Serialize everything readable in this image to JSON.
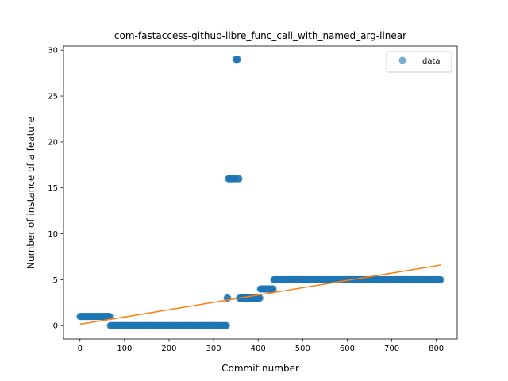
{
  "chart_data": {
    "type": "scatter",
    "title": "com-fastaccess-github-libre_func_call_with_named_arg-linear",
    "xlabel": "Commit number",
    "ylabel": "Number of instance of a feature",
    "xlim": [
      -37,
      847
    ],
    "ylim": [
      -1.45,
      30.45
    ],
    "xticks": [
      0,
      100,
      200,
      300,
      400,
      500,
      600,
      700,
      800
    ],
    "yticks": [
      0,
      5,
      10,
      15,
      20,
      25,
      30
    ],
    "grid": false,
    "legend": {
      "position": "top-right",
      "entries": [
        "data"
      ]
    },
    "colors": {
      "data": "#1f77b4",
      "fit": "#ff7f0e"
    },
    "series": [
      {
        "name": "data",
        "kind": "scatter",
        "segments": [
          {
            "x_start": 0,
            "x_end": 68,
            "y": 1
          },
          {
            "x_start": 68,
            "x_end": 330,
            "y": 0
          },
          {
            "x_start": 330,
            "x_end": 333,
            "y": 3
          },
          {
            "x_start": 333,
            "x_end": 350,
            "y": 16
          },
          {
            "x_start": 350,
            "x_end": 355,
            "y": 29
          },
          {
            "x_start": 355,
            "x_end": 358,
            "y": 16
          },
          {
            "x_start": 358,
            "x_end": 405,
            "y": 3
          },
          {
            "x_start": 405,
            "x_end": 435,
            "y": 4
          },
          {
            "x_start": 435,
            "x_end": 811,
            "y": 5
          }
        ]
      },
      {
        "kind": "line",
        "x": [
          0,
          811
        ],
        "y": [
          0.15,
          6.6
        ]
      }
    ]
  }
}
